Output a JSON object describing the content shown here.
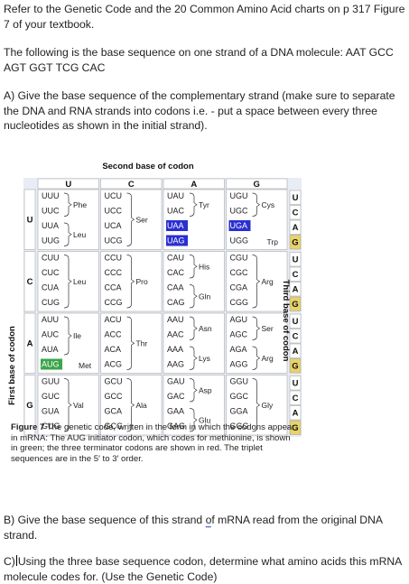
{
  "intro": "Refer to the Genetic Code and the 20 Common Amino Acid charts on p 317 Figure 7 of your textbook.",
  "sequence_text": "The following is the base sequence on one strand of a DNA molecule: AAT GCC AGT GGT TCG CAC",
  "question_a": "A) Give the base sequence of the complementary strand (make sure to separate the DNA and RNA strands into codons i.e. - put a space between every three nucleotides as shown in the initial strand).",
  "question_b_pre": "B) Give the base sequence of this strand ",
  "question_b_word": "of",
  "question_b_post": " mRNA read from the original DNA strand.",
  "question_c_prefix": "C)",
  "question_c": "Using the three base sequence codon, determine what amino acids this mRNA molecule codes for. (Use the Genetic Code)",
  "figure": {
    "second_base_label": "Second base of codon",
    "first_base_label": "First base of codon",
    "third_base_label": "Third base of codon",
    "bases": [
      "U",
      "C",
      "A",
      "G"
    ],
    "caption_label": "Figure 7",
    "caption_text": " The genetic code, written in the form in which the codons appear in mRNA: The AUG initiator codon, which codes for methionine, is shown in green; the three terminator codons are shown in red. The triplet sequences are in the 5′ to 3′ order.",
    "colors": {
      "start": "#3aa648",
      "stop": "#2a2fd0",
      "third_base": "#e8d36a",
      "grid_bg": "#e8ecf4"
    }
  },
  "chart_data": {
    "type": "table",
    "rows": [
      {
        "first": "U",
        "cols": [
          {
            "codons": [
              "UUU",
              "UUC",
              "UUA",
              "UUG"
            ],
            "aa": [
              [
                "Phe",
                0,
                1
              ],
              [
                "Leu",
                2,
                3
              ]
            ]
          },
          {
            "codons": [
              "UCU",
              "UCC",
              "UCA",
              "UCG"
            ],
            "aa": [
              [
                "Ser",
                0,
                3
              ]
            ]
          },
          {
            "codons": [
              "UAU",
              "UAC",
              "UAA",
              "UAG"
            ],
            "aa": [
              [
                "Tyr",
                0,
                1
              ]
            ],
            "stop": [
              2,
              3
            ]
          },
          {
            "codons": [
              "UGU",
              "UGC",
              "UGA",
              "UGG"
            ],
            "aa": [
              [
                "Cys",
                0,
                1
              ],
              [
                "Trp",
                3,
                3
              ]
            ],
            "stop": [
              2
            ]
          }
        ]
      },
      {
        "first": "C",
        "cols": [
          {
            "codons": [
              "CUU",
              "CUC",
              "CUA",
              "CUG"
            ],
            "aa": [
              [
                "Leu",
                0,
                3
              ]
            ]
          },
          {
            "codons": [
              "CCU",
              "CCC",
              "CCA",
              "CCG"
            ],
            "aa": [
              [
                "Pro",
                0,
                3
              ]
            ]
          },
          {
            "codons": [
              "CAU",
              "CAC",
              "CAA",
              "CAG"
            ],
            "aa": [
              [
                "His",
                0,
                1
              ],
              [
                "Gln",
                2,
                3
              ]
            ]
          },
          {
            "codons": [
              "CGU",
              "CGC",
              "CGA",
              "CGG"
            ],
            "aa": [
              [
                "Arg",
                0,
                3
              ]
            ]
          }
        ]
      },
      {
        "first": "A",
        "cols": [
          {
            "codons": [
              "AUU",
              "AUC",
              "AUA",
              "AUG"
            ],
            "aa": [
              [
                "Ile",
                0,
                2
              ],
              [
                "Met",
                3,
                3
              ]
            ],
            "start": [
              3
            ]
          },
          {
            "codons": [
              "ACU",
              "ACC",
              "ACA",
              "ACG"
            ],
            "aa": [
              [
                "Thr",
                0,
                3
              ]
            ]
          },
          {
            "codons": [
              "AAU",
              "AAC",
              "AAA",
              "AAG"
            ],
            "aa": [
              [
                "Asn",
                0,
                1
              ],
              [
                "Lys",
                2,
                3
              ]
            ]
          },
          {
            "codons": [
              "AGU",
              "AGC",
              "AGA",
              "AGG"
            ],
            "aa": [
              [
                "Ser",
                0,
                1
              ],
              [
                "Arg",
                2,
                3
              ]
            ]
          }
        ]
      },
      {
        "first": "G",
        "cols": [
          {
            "codons": [
              "GUU",
              "GUC",
              "GUA",
              "GUG"
            ],
            "aa": [
              [
                "Val",
                0,
                3
              ]
            ]
          },
          {
            "codons": [
              "GCU",
              "GCC",
              "GCA",
              "GCG"
            ],
            "aa": [
              [
                "Ala",
                0,
                3
              ]
            ]
          },
          {
            "codons": [
              "GAU",
              "GAC",
              "GAA",
              "GAG"
            ],
            "aa": [
              [
                "Asp",
                0,
                1
              ],
              [
                "Glu",
                2,
                3
              ]
            ]
          },
          {
            "codons": [
              "GGU",
              "GGC",
              "GGA",
              "GGG"
            ],
            "aa": [
              [
                "Gly",
                0,
                3
              ]
            ]
          }
        ]
      }
    ]
  }
}
